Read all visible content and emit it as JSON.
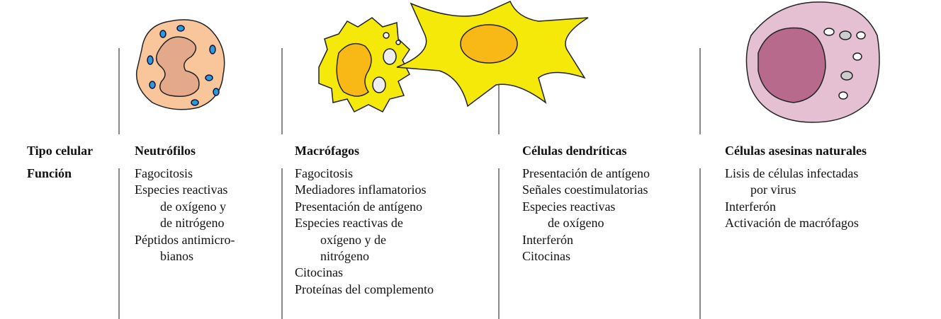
{
  "table": {
    "row_labels": [
      "Tipo celular",
      "Función"
    ],
    "columns": [
      {
        "name": "Neutrófilos",
        "functions": [
          [
            "Fagocitosis"
          ],
          [
            "Especies reactivas",
            "de oxígeno y",
            "de nitrógeno"
          ],
          [
            "Péptidos antimicro-",
            "bianos"
          ]
        ]
      },
      {
        "name": "Macrófagos",
        "functions": [
          [
            "Fagocitosis"
          ],
          [
            "Mediadores inflamatorios"
          ],
          [
            "Presentación de antígeno"
          ],
          [
            "Especies reactivas de",
            "oxígeno y de",
            "nitrógeno"
          ],
          [
            "Citocinas"
          ],
          [
            "Proteínas del complemento"
          ]
        ]
      },
      {
        "name": "Células dendríticas",
        "functions": [
          [
            "Presentación de antígeno"
          ],
          [
            "Señales coestimulatorias"
          ],
          [
            "Especies reactivas",
            "de oxígeno"
          ],
          [
            "Interferón"
          ],
          [
            "Citocinas"
          ]
        ]
      },
      {
        "name": "Células asesinas naturales",
        "functions": [
          [
            "Lisis de células infectadas",
            "por virus"
          ],
          [
            "Interferón"
          ],
          [
            "Activación de macrófagos"
          ]
        ]
      }
    ]
  }
}
